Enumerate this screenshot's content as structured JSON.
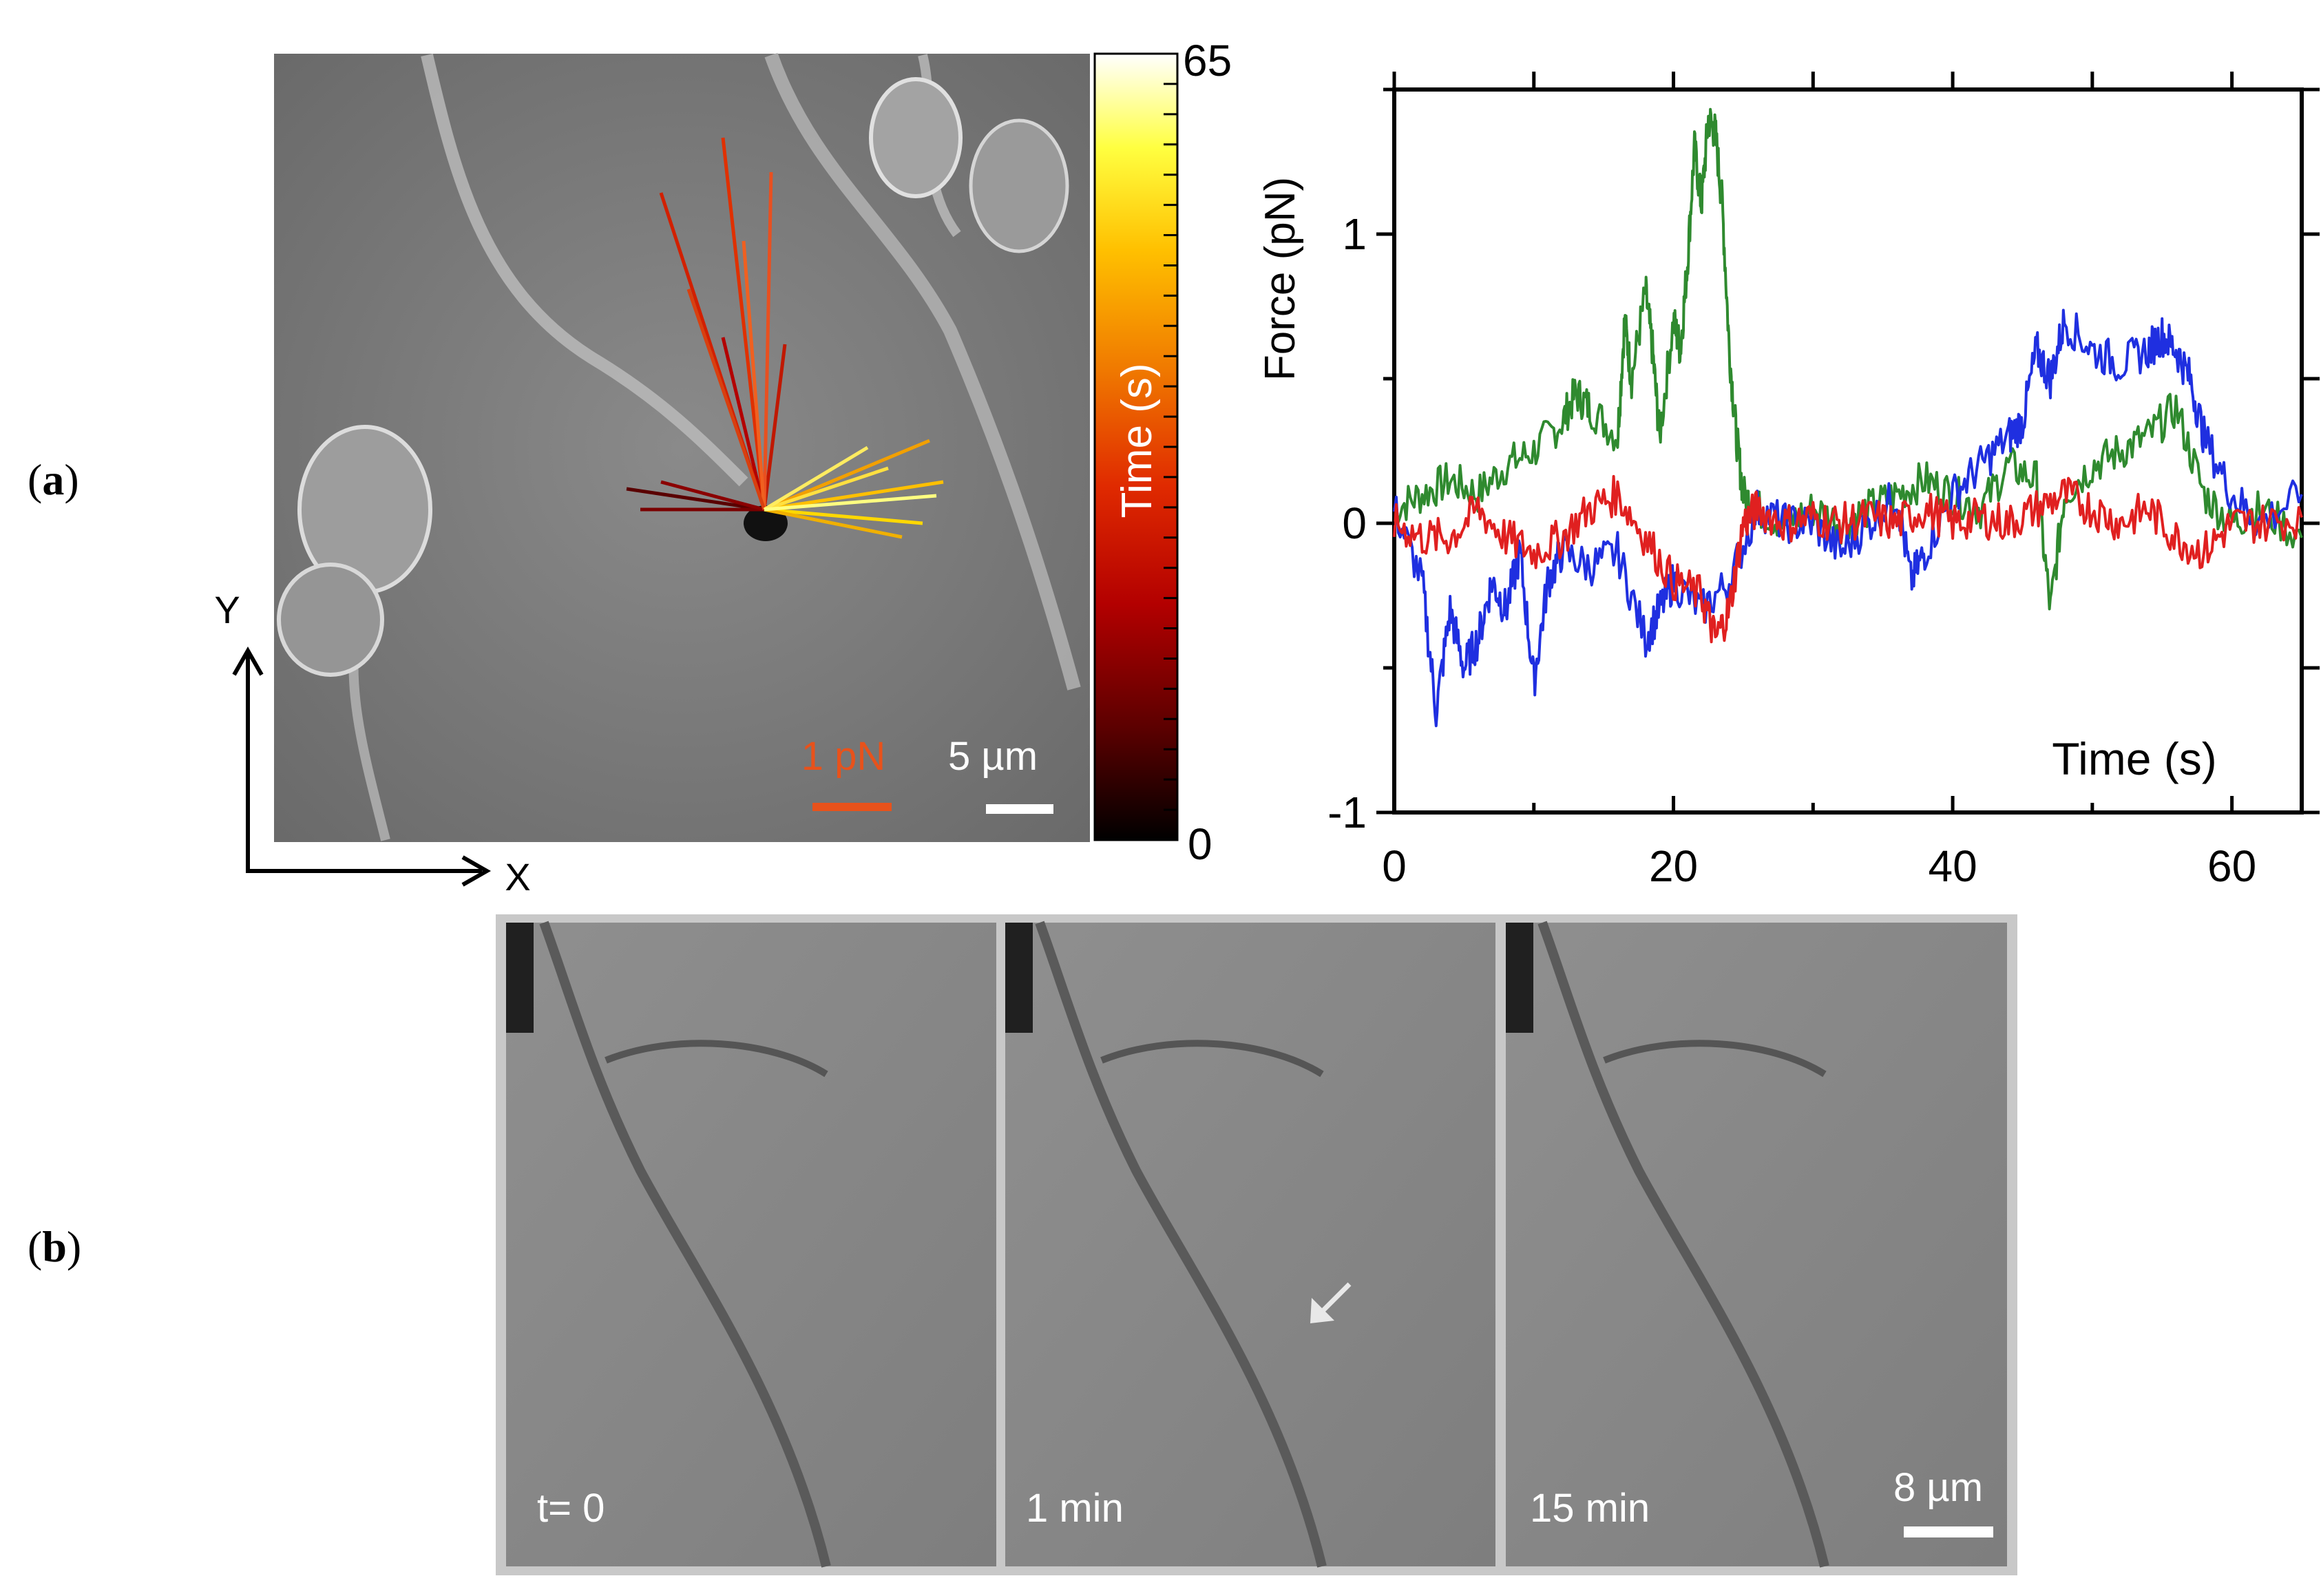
{
  "panel_a": {
    "label_open": "(",
    "label_letter": "a",
    "label_close": ")",
    "micrograph": {
      "axis_x_label": "X",
      "axis_y_label": "Y",
      "force_scale_label": "1 pN",
      "length_scale_label": "5 µm",
      "colorbar": {
        "label": "Time (s)",
        "min_label": "0",
        "max_label": "65",
        "min": 0,
        "max": 65,
        "colors": [
          "#000000",
          "#5a0000",
          "#b30000",
          "#e02a00",
          "#f07a00",
          "#ffc000",
          "#ffff40",
          "#ffffff"
        ]
      }
    }
  },
  "chart_data": {
    "type": "line",
    "title": "",
    "xlabel": "Time (s)",
    "ylabel": "Force (pN)",
    "xlim": [
      0,
      65
    ],
    "ylim": [
      -1,
      1.5
    ],
    "xticks": [
      0,
      20,
      40,
      60
    ],
    "yticks": [
      -1,
      0,
      1
    ],
    "xtick_labels": [
      "0",
      "20",
      "40",
      "60"
    ],
    "ytick_labels": [
      "-1",
      "0",
      "1"
    ],
    "grid": false,
    "series": [
      {
        "color": "#2f8a2f",
        "x": [
          0,
          2,
          4,
          6,
          8,
          10,
          12,
          13,
          14,
          16,
          16.5,
          17,
          18,
          18.5,
          19,
          20,
          20.5,
          21,
          21.5,
          22,
          22.5,
          23,
          23.5,
          24,
          24.5,
          25,
          26,
          28,
          30,
          32,
          34,
          36,
          38,
          40,
          42,
          44,
          46,
          47,
          48,
          50,
          52,
          54,
          56,
          58,
          60,
          62,
          65
        ],
        "y": [
          0.05,
          0.1,
          0.15,
          0.1,
          0.2,
          0.25,
          0.35,
          0.45,
          0.4,
          0.3,
          0.7,
          0.5,
          0.8,
          0.6,
          0.3,
          0.7,
          0.6,
          0.9,
          1.3,
          1.1,
          1.4,
          1.35,
          1.1,
          0.6,
          0.3,
          0.1,
          0.05,
          0,
          0.05,
          0,
          0.05,
          0.1,
          0.15,
          0.1,
          0.05,
          0.2,
          0.15,
          -0.3,
          0.1,
          0.2,
          0.25,
          0.3,
          0.4,
          0.1,
          0,
          0.05,
          -0.05
        ]
      },
      {
        "color": "#1f2fe0",
        "x": [
          0,
          2,
          3,
          4,
          5,
          6,
          7,
          8,
          9,
          10,
          11,
          12,
          14,
          16,
          18,
          19,
          20,
          22,
          24,
          26,
          28,
          30,
          32,
          34,
          36,
          37,
          38,
          40,
          42,
          44,
          45,
          46,
          47,
          48,
          50,
          52,
          54,
          55,
          56,
          57,
          58,
          60,
          62,
          65
        ],
        "y": [
          0.05,
          -0.2,
          -0.65,
          -0.3,
          -0.5,
          -0.4,
          -0.2,
          -0.3,
          -0.1,
          -0.55,
          -0.2,
          -0.1,
          -0.15,
          -0.1,
          -0.4,
          -0.3,
          -0.2,
          -0.3,
          -0.2,
          0.05,
          0,
          0,
          -0.1,
          0,
          0.1,
          -0.2,
          -0.1,
          0.1,
          0.2,
          0.3,
          0.35,
          0.6,
          0.5,
          0.7,
          0.6,
          0.55,
          0.6,
          0.65,
          0.6,
          0.5,
          0.3,
          0.1,
          0,
          0.1
        ]
      },
      {
        "color": "#e02020",
        "x": [
          0,
          2,
          4,
          6,
          8,
          10,
          12,
          14,
          16,
          18,
          20,
          22,
          23,
          24,
          25,
          26,
          28,
          30,
          32,
          34,
          36,
          38,
          40,
          42,
          44,
          46,
          48,
          50,
          52,
          54,
          56,
          58,
          60,
          62,
          65
        ],
        "y": [
          0,
          -0.05,
          -0.05,
          0.05,
          -0.05,
          -0.1,
          -0.05,
          0.05,
          0.1,
          -0.05,
          -0.2,
          -0.25,
          -0.4,
          -0.3,
          0,
          0.05,
          0,
          0.02,
          0,
          0.02,
          0,
          0.05,
          0,
          0.02,
          0,
          0.05,
          0.1,
          0.05,
          0,
          0.05,
          -0.05,
          -0.1,
          0,
          0,
          0.02
        ]
      }
    ]
  },
  "panel_b": {
    "label_open": "(",
    "label_letter": "b",
    "label_close": ")",
    "frames": [
      {
        "time_label": "t= 0"
      },
      {
        "time_label": "1 min"
      },
      {
        "time_label": "15 min"
      }
    ],
    "scale_bar_label": "8 µm"
  }
}
